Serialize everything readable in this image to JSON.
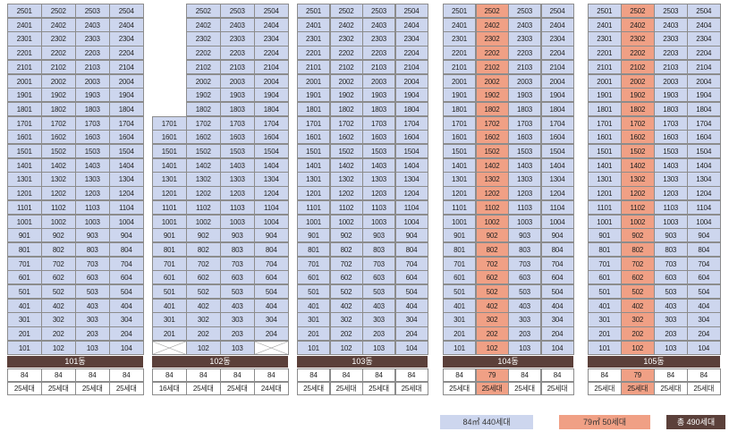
{
  "chart_data": {
    "type": "table",
    "buildings": [
      {
        "name": "101동",
        "top_floor": 25,
        "missing_floors": [],
        "empty_units": [],
        "highlight_line": null,
        "sizes": [
          "84",
          "84",
          "84",
          "84"
        ],
        "counts": [
          "25세대",
          "25세대",
          "25세대",
          "25세대"
        ]
      },
      {
        "name": "102동",
        "top_floor": 25,
        "missing_floors": [
          18,
          19,
          20,
          21,
          22,
          23,
          24,
          25
        ],
        "missing_line": 1,
        "empty_units": [
          "101",
          "104"
        ],
        "highlight_line": null,
        "sizes": [
          "84",
          "84",
          "84",
          "84"
        ],
        "counts": [
          "16세대",
          "25세대",
          "25세대",
          "24세대"
        ]
      },
      {
        "name": "103동",
        "top_floor": 25,
        "missing_floors": [],
        "empty_units": [],
        "highlight_line": null,
        "sizes": [
          "84",
          "84",
          "84",
          "84"
        ],
        "counts": [
          "25세대",
          "25세대",
          "25세대",
          "25세대"
        ]
      },
      {
        "name": "104동",
        "top_floor": 25,
        "missing_floors": [],
        "empty_units": [],
        "highlight_line": 2,
        "sizes": [
          "84",
          "79",
          "84",
          "84"
        ],
        "counts": [
          "25세대",
          "25세대",
          "25세대",
          "25세대"
        ]
      },
      {
        "name": "105동",
        "top_floor": 25,
        "missing_floors": [],
        "empty_units": [],
        "highlight_line": 2,
        "sizes": [
          "84",
          "79",
          "84",
          "84"
        ],
        "counts": [
          "25세대",
          "25세대",
          "25세대",
          "25세대"
        ]
      }
    ]
  },
  "legend": {
    "items": [
      {
        "label": "84㎡ 440세대",
        "color": "#cdd6ee"
      },
      {
        "label": "79㎡ 50세대",
        "color": "#f0a085"
      },
      {
        "label": "총 490세대",
        "color": "#5b403a"
      }
    ]
  },
  "colors": {
    "unit": "#cdd6ee",
    "highlight": "#f0a085",
    "bar": "#5b403a"
  }
}
